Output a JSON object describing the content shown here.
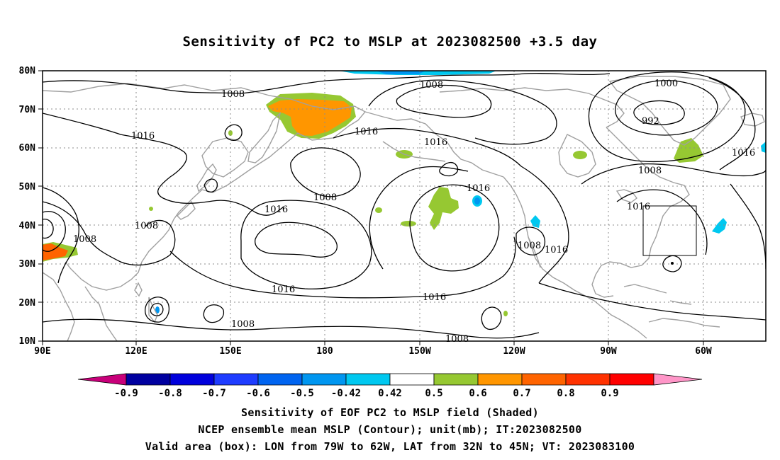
{
  "title": "Sensitivity of PC2 to MSLP at 2023082500 +3.5 day",
  "map": {
    "lat_labels": [
      "80N",
      "70N",
      "60N",
      "50N",
      "40N",
      "30N",
      "20N",
      "10N"
    ],
    "lon_labels": [
      "90E",
      "120E",
      "150E",
      "180",
      "150W",
      "120W",
      "90W",
      "60W"
    ],
    "contour_labels": [
      {
        "text": "1008",
        "name": "label-1008-nw"
      },
      {
        "text": "1016",
        "name": "label-1016-kamchatka"
      },
      {
        "text": "1008",
        "name": "label-1008-arctic-center"
      },
      {
        "text": "1016",
        "name": "label-1016-alaska"
      },
      {
        "text": "1016",
        "name": "label-1016-gulf-alaska"
      },
      {
        "text": "1000",
        "name": "label-1000-greenland"
      },
      {
        "text": "992",
        "name": "label-992-greenland"
      },
      {
        "text": "1016",
        "name": "label-1016-atlantic"
      },
      {
        "text": "1008",
        "name": "label-1008-labrador"
      },
      {
        "text": "1016",
        "name": "label-1016-pacific-center"
      },
      {
        "text": "1008",
        "name": "label-1008-pacific-north"
      },
      {
        "text": "1016",
        "name": "label-1016-ne-pacific"
      },
      {
        "text": "1008",
        "name": "label-1008-china"
      },
      {
        "text": "1008",
        "name": "label-1008-japan"
      },
      {
        "text": "1016",
        "name": "label-1016-pacific-south"
      },
      {
        "text": "1016",
        "name": "label-1016-hawaii"
      },
      {
        "text": "1008",
        "name": "label-1008-tropics-west"
      },
      {
        "text": "1008",
        "name": "label-1008-tropics-east"
      },
      {
        "text": "1008",
        "name": "label-1008-mexico"
      },
      {
        "text": "1016",
        "name": "label-1016-us"
      },
      {
        "text": "1016",
        "name": "label-1016-east-coast"
      }
    ],
    "valid_box": {
      "lon_from": "79W",
      "lon_to": "62W",
      "lat_from": "32N",
      "lat_to": "45N"
    },
    "colors": {
      "land": "#a0a0a0",
      "contour": "#000000",
      "grid": "#8c8c8c"
    }
  },
  "colorbar": {
    "labels": [
      "-0.9",
      "-0.8",
      "-0.7",
      "-0.6",
      "-0.5",
      "-0.42",
      "0.42",
      "0.5",
      "0.6",
      "0.7",
      "0.8",
      "0.9"
    ],
    "colors": [
      "#c8007a",
      "#0000a0",
      "#0000dc",
      "#1e3cff",
      "#0064f0",
      "#0096f0",
      "#00c8f0",
      "#ffffff",
      "#96c832",
      "#ff9600",
      "#ff6400",
      "#ff3200",
      "#ff0000",
      "#ff96c8"
    ]
  },
  "captions": [
    "Sensitivity of EOF PC2 to MSLP field (Shaded)",
    "NCEP ensemble mean MSLP (Contour); unit(mb); IT:2023082500",
    "Valid area (box): LON from 79W to 62W, LAT from 32N to 45N; VT: 2023083100"
  ]
}
